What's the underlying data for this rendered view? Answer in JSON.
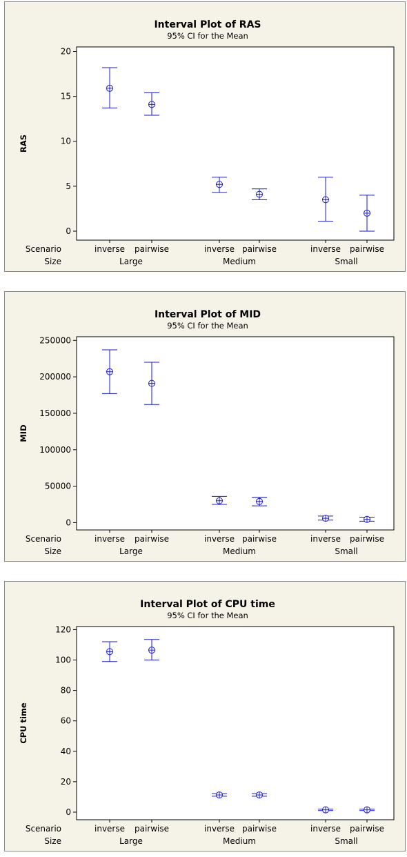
{
  "chart_data": [
    {
      "type": "interval",
      "title": "Interval Plot of RAS",
      "subtitle": "95% CI for the Mean",
      "ylabel": "RAS",
      "row_labels": [
        "Scenario",
        "Size"
      ],
      "groups": [
        "Large",
        "Medium",
        "Small"
      ],
      "categories": [
        "inverse",
        "pairwise",
        "inverse",
        "pairwise",
        "inverse",
        "pairwise"
      ],
      "yticks": [
        0,
        5,
        10,
        15,
        20
      ],
      "ylim": [
        -1,
        20.5
      ],
      "mean": [
        15.9,
        14.1,
        5.2,
        4.1,
        3.5,
        2.0
      ],
      "lower": [
        13.7,
        12.9,
        4.3,
        3.5,
        1.1,
        0.0
      ],
      "upper": [
        18.2,
        15.4,
        6.0,
        4.7,
        6.0,
        4.0
      ],
      "color": "#1a1acd",
      "grid": false
    },
    {
      "type": "interval",
      "title": "Interval Plot of MID",
      "subtitle": "95% CI for the Mean",
      "ylabel": "MID",
      "row_labels": [
        "Scenario",
        "Size"
      ],
      "groups": [
        "Large",
        "Medium",
        "Small"
      ],
      "categories": [
        "inverse",
        "pairwise",
        "inverse",
        "pairwise",
        "inverse",
        "pairwise"
      ],
      "yticks": [
        0,
        50000,
        100000,
        150000,
        200000,
        250000
      ],
      "ylim": [
        -10000,
        255000
      ],
      "mean": [
        207000,
        191000,
        30000,
        29000,
        6000,
        4500
      ],
      "lower": [
        177000,
        162000,
        25000,
        23000,
        3500,
        2000
      ],
      "upper": [
        237000,
        220000,
        36000,
        35000,
        9000,
        7500
      ],
      "color": "#1a1acd",
      "grid": false
    },
    {
      "type": "interval",
      "title": "Interval Plot of CPU time",
      "subtitle": "95% CI for the Mean",
      "ylabel": "CPU time",
      "row_labels": [
        "Scenario",
        "Size"
      ],
      "groups": [
        "Large",
        "Medium",
        "Small"
      ],
      "categories": [
        "inverse",
        "pairwise",
        "inverse",
        "pairwise",
        "inverse",
        "pairwise"
      ],
      "yticks": [
        0,
        20,
        40,
        60,
        80,
        100,
        120
      ],
      "ylim": [
        -5,
        122
      ],
      "mean": [
        105.5,
        106.5,
        11.3,
        11.3,
        1.5,
        1.5
      ],
      "lower": [
        99.0,
        100.0,
        10.5,
        10.5,
        1.0,
        1.0
      ],
      "upper": [
        112.0,
        113.5,
        12.2,
        12.2,
        2.0,
        2.0
      ],
      "color": "#1a1acd",
      "grid": false
    }
  ]
}
